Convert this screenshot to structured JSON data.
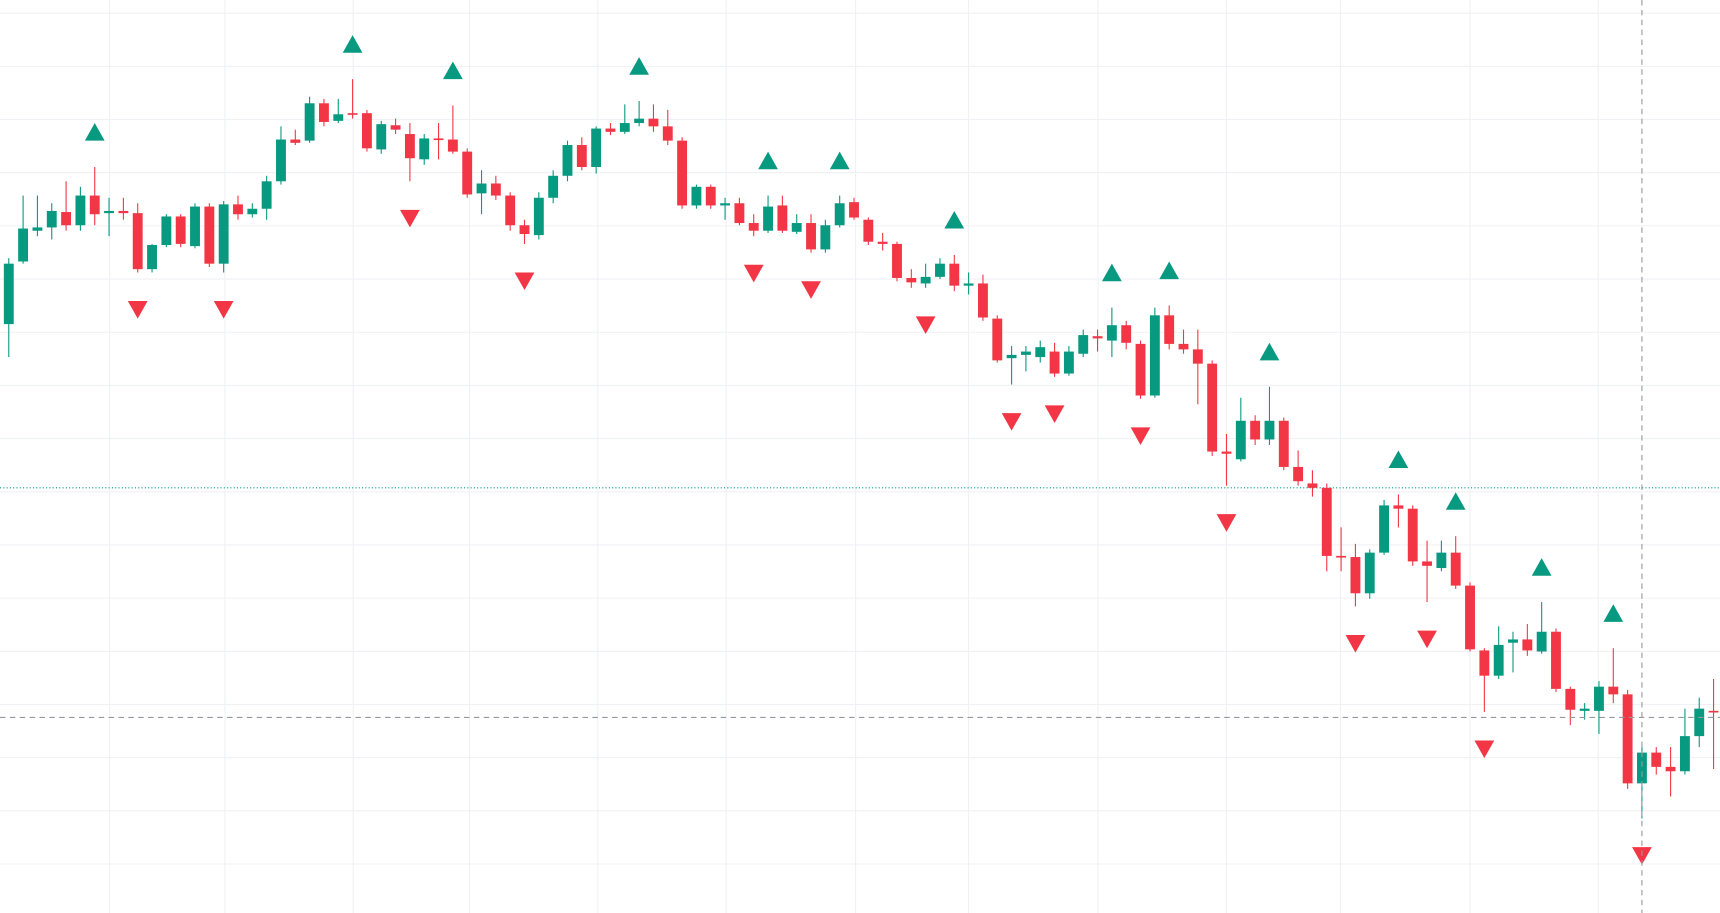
{
  "chart_data": {
    "type": "candlestick",
    "up_color": "#089981",
    "down_color": "#f23645",
    "ylim": [
      169,
      1000
    ],
    "open": [
      705,
      762,
      790,
      793,
      807,
      795,
      822,
      806,
      808,
      806,
      755,
      777,
      803,
      776,
      812,
      760,
      814,
      805,
      810,
      835,
      873,
      872,
      906,
      890,
      897,
      897,
      864,
      886,
      878,
      855,
      874,
      873,
      862,
      824,
      833,
      822,
      795,
      786,
      820,
      840,
      868,
      848,
      883,
      880,
      888,
      892,
      885,
      872,
      813,
      830,
      813,
      815,
      797,
      790,
      813,
      789,
      797,
      773,
      795,
      816,
      800,
      780,
      778,
      747,
      742,
      748,
      760,
      740,
      742,
      710,
      674,
      677,
      675,
      680,
      660,
      678,
      694,
      690,
      704,
      687,
      640,
      713,
      687,
      682,
      669,
      589,
      582,
      617,
      600,
      617,
      575,
      560,
      556,
      494,
      493,
      460,
      497,
      540,
      537,
      489,
      483,
      497,
      467,
      408,
      385,
      415,
      418,
      407,
      425,
      373,
      353,
      353,
      375,
      368,
      287,
      315,
      302,
      298,
      330,
      353
    ],
    "high": [
      765,
      822,
      822,
      815,
      835,
      830,
      848,
      820,
      820,
      815,
      778,
      805,
      805,
      815,
      815,
      817,
      822,
      815,
      840,
      885,
      882,
      912,
      910,
      910,
      928,
      900,
      890,
      892,
      888,
      878,
      888,
      904,
      865,
      845,
      840,
      825,
      800,
      825,
      845,
      872,
      875,
      885,
      888,
      905,
      908,
      905,
      900,
      875,
      832,
      832,
      820,
      820,
      805,
      822,
      822,
      805,
      805,
      800,
      822,
      820,
      802,
      788,
      780,
      755,
      760,
      765,
      768,
      752,
      750,
      713,
      685,
      685,
      690,
      688,
      685,
      700,
      700,
      720,
      708,
      690,
      720,
      722,
      700,
      700,
      672,
      605,
      638,
      622,
      648,
      620,
      590,
      572,
      560,
      520,
      505,
      500,
      545,
      550,
      540,
      508,
      508,
      512,
      470,
      410,
      430,
      425,
      432,
      452,
      428,
      375,
      360,
      380,
      410,
      372,
      320,
      320,
      320,
      355,
      365,
      382
    ],
    "low": [
      675,
      760,
      785,
      782,
      790,
      790,
      795,
      785,
      800,
      752,
      752,
      775,
      775,
      774,
      757,
      752,
      800,
      802,
      800,
      832,
      868,
      870,
      885,
      888,
      892,
      862,
      860,
      878,
      835,
      850,
      855,
      860,
      820,
      805,
      818,
      790,
      778,
      782,
      815,
      835,
      845,
      842,
      877,
      878,
      885,
      880,
      868,
      810,
      810,
      810,
      800,
      795,
      785,
      788,
      788,
      787,
      770,
      770,
      793,
      800,
      777,
      772,
      744,
      738,
      738,
      746,
      735,
      732,
      708,
      670,
      650,
      662,
      670,
      657,
      658,
      675,
      680,
      675,
      682,
      637,
      638,
      682,
      678,
      632,
      585,
      558,
      580,
      595,
      595,
      572,
      558,
      548,
      480,
      480,
      448,
      455,
      495,
      520,
      485,
      452,
      480,
      464,
      407,
      352,
      382,
      388,
      403,
      405,
      370,
      340,
      345,
      332,
      360,
      282,
      255,
      295,
      275,
      295,
      320,
      300
    ],
    "close": [
      760,
      792,
      793,
      808,
      795,
      822,
      805,
      808,
      806,
      755,
      777,
      803,
      778,
      812,
      760,
      814,
      805,
      810,
      835,
      873,
      870,
      906,
      889,
      896,
      896,
      865,
      887,
      882,
      856,
      874,
      873,
      862,
      823,
      833,
      822,
      795,
      787,
      820,
      840,
      868,
      848,
      883,
      880,
      888,
      892,
      885,
      872,
      813,
      830,
      813,
      815,
      797,
      790,
      812,
      790,
      797,
      773,
      795,
      815,
      802,
      780,
      778,
      747,
      743,
      748,
      760,
      740,
      742,
      711,
      672,
      677,
      680,
      684,
      660,
      680,
      695,
      692,
      704,
      688,
      640,
      713,
      687,
      682,
      669,
      589,
      587,
      617,
      600,
      617,
      575,
      562,
      556,
      494,
      493,
      460,
      497,
      540,
      537,
      489,
      485,
      497,
      467,
      409,
      385,
      413,
      418,
      408,
      425,
      373,
      354,
      355,
      375,
      368,
      287,
      315,
      302,
      298,
      330,
      355,
      352
    ],
    "fractal_up": [
      6,
      24,
      31,
      44,
      53,
      58,
      66,
      77,
      81,
      88,
      97,
      101,
      107,
      112
    ],
    "fractal_down": [
      9,
      15,
      28,
      36,
      52,
      56,
      64,
      70,
      73,
      79,
      85,
      94,
      99,
      103,
      114
    ],
    "price_line": 556,
    "price_line_color": "#089981",
    "crosshair": {
      "index": 114,
      "price": 347
    },
    "grid": true
  }
}
